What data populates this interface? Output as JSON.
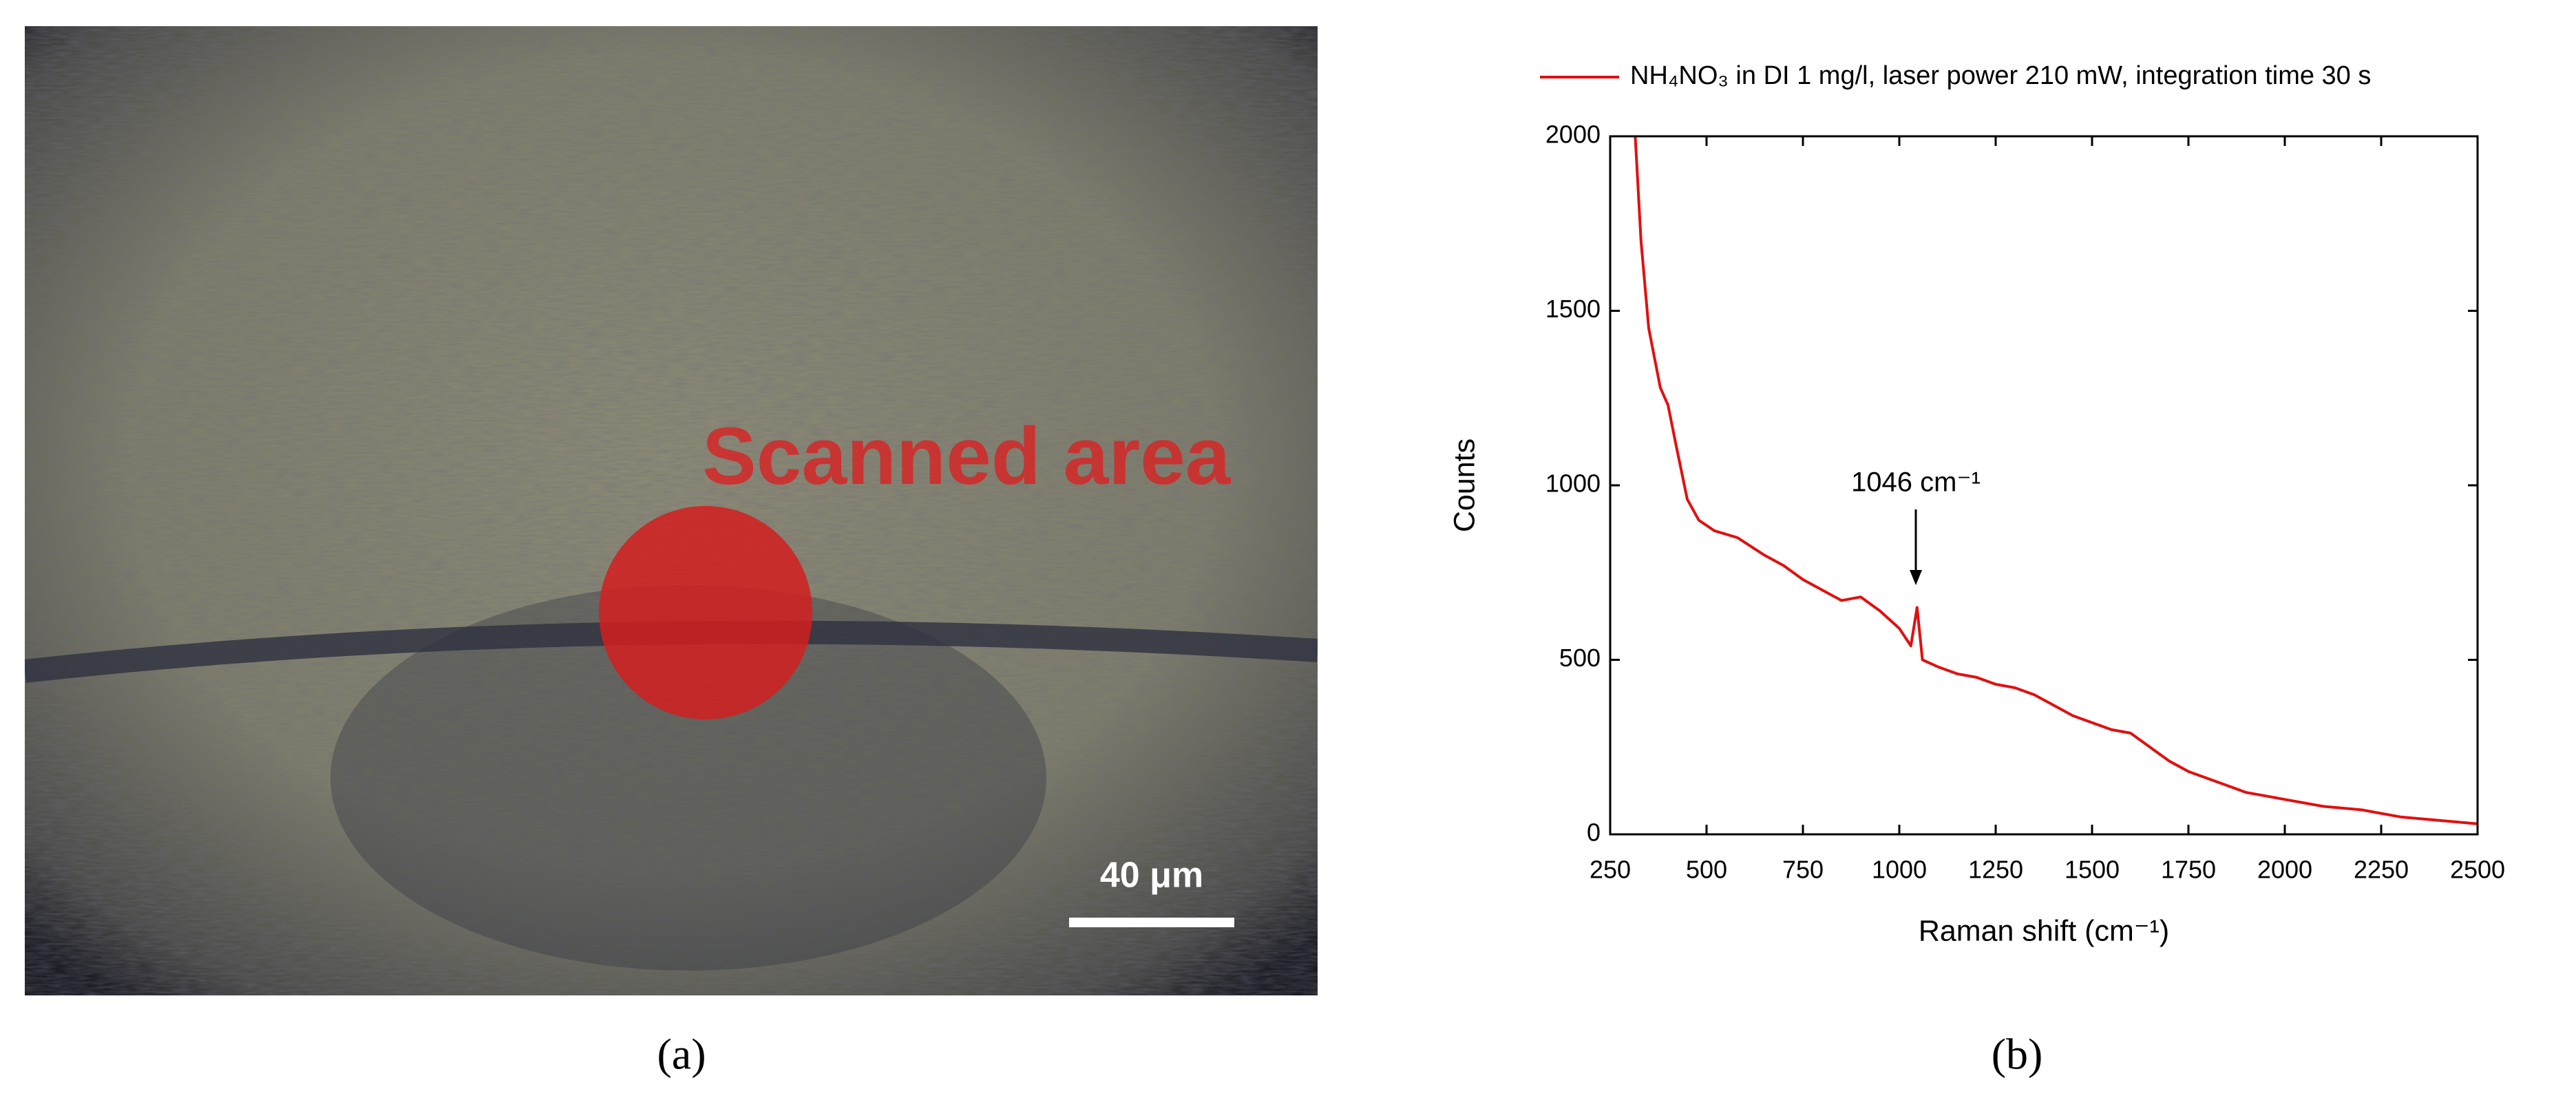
{
  "panel_a": {
    "photo_label": "Scanned area",
    "scale_bar": "40 μm",
    "caption": "(a)"
  },
  "panel_b": {
    "caption": "(b)"
  },
  "chart_data": {
    "type": "line",
    "xlabel": "Raman shift (cm⁻¹)",
    "ylabel": "Counts",
    "annotation": "1046 cm⁻¹",
    "x": [
      315,
      330,
      350,
      380,
      400,
      420,
      450,
      480,
      520,
      580,
      650,
      700,
      750,
      800,
      850,
      900,
      950,
      1000,
      1030,
      1046,
      1060,
      1100,
      1150,
      1200,
      1250,
      1300,
      1350,
      1400,
      1450,
      1500,
      1550,
      1600,
      1650,
      1700,
      1750,
      1800,
      1850,
      1900,
      1950,
      2000,
      2100,
      2200,
      2300,
      2400,
      2500
    ],
    "series": [
      {
        "name": "NH₄NO₃ in DI 1 mg/l, laser power 210 mW, integration time 30 s",
        "color": "#e01010",
        "values": [
          2000,
          1700,
          1450,
          1280,
          1230,
          1120,
          960,
          900,
          870,
          850,
          800,
          770,
          730,
          700,
          670,
          680,
          640,
          590,
          540,
          650,
          500,
          480,
          460,
          450,
          430,
          420,
          400,
          370,
          340,
          320,
          300,
          290,
          250,
          210,
          180,
          160,
          140,
          120,
          110,
          100,
          80,
          70,
          50,
          40,
          30
        ]
      }
    ],
    "xlim": [
      250,
      2500
    ],
    "xticks": [
      250,
      500,
      750,
      1000,
      1250,
      1500,
      1750,
      2000,
      2250,
      2500
    ],
    "ylim": [
      0,
      2000
    ],
    "yticks": [
      0,
      500,
      1000,
      1500,
      2000
    ]
  }
}
